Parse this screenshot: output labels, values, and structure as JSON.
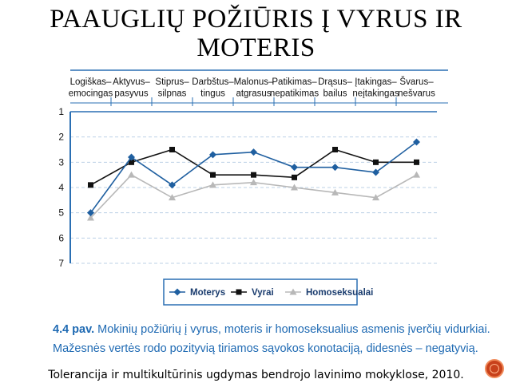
{
  "slide": {
    "title_line1": "PAAUGLIŲ POŽIŪRIS Į VYRUS IR",
    "title_line2": "MOTERIS",
    "caption_label": "4.4 pav.",
    "caption_text": " Mokinių požiūrių į vyrus, moteris ir homoseksualius asmenis įverčių vidurkiai.",
    "caption_line2": "Mažesnės vertės rodo pozityvią tiriamos sąvokos konotaciją, didesnės – negatyvią.",
    "source": "Tolerancija ir multikultūrinis ugdymas bendrojo lavinimo mokyklose, 2010."
  },
  "chart_data": {
    "type": "line",
    "categories": [
      [
        "Logiškas–",
        "emocingas"
      ],
      [
        "Aktyvus–",
        "pasyvus"
      ],
      [
        "Stiprus–",
        "silpnas"
      ],
      [
        "Darbštus–",
        "tingus"
      ],
      [
        "Malonus–",
        "atgrasus"
      ],
      [
        "Patikimas–",
        "nepatikimas"
      ],
      [
        "Drąsus–",
        "bailus"
      ],
      [
        "Įtakingas–",
        "neįtakingas"
      ],
      [
        "Švarus–",
        "nešvarus"
      ]
    ],
    "y_ticks": [
      1,
      2,
      3,
      4,
      5,
      6,
      7
    ],
    "ylim": [
      1,
      7
    ],
    "y_inverted": true,
    "grid": "horizontal dashed",
    "legend_position": "bottom",
    "series": [
      {
        "name": "Moterys",
        "color": "#1f5fa0",
        "marker": "diamond",
        "values": [
          5.0,
          2.8,
          3.9,
          2.7,
          2.6,
          3.2,
          3.2,
          3.4,
          2.2
        ]
      },
      {
        "name": "Vyrai",
        "color": "#111111",
        "marker": "square",
        "values": [
          3.9,
          3.0,
          2.5,
          3.5,
          3.5,
          3.6,
          2.5,
          3.0,
          3.0
        ]
      },
      {
        "name": "Homoseksualai",
        "color": "#b8b8b8",
        "marker": "triangle",
        "values": [
          5.2,
          3.5,
          4.4,
          3.9,
          3.8,
          4.0,
          4.2,
          4.4,
          3.5
        ]
      }
    ]
  }
}
